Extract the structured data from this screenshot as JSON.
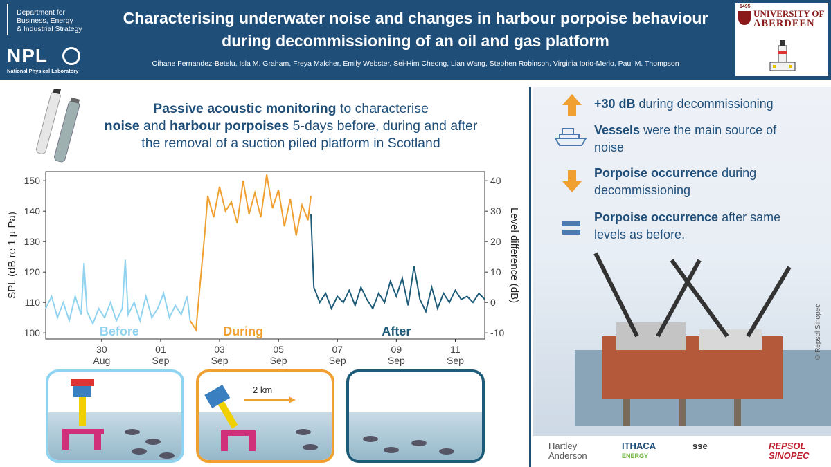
{
  "header": {
    "beis_lines": "Department for\nBusiness, Energy\n& Industrial Strategy",
    "npl_logo": "NPL",
    "npl_name": "National Physical Laboratory",
    "title": "Characterising underwater noise and changes in harbour porpoise behaviour during decommissioning of an oil and gas platform",
    "authors": "Oihane Fernandez-Betelu, Isla M. Graham, Freya Malcher, Emily Webster, Sei-Him Cheong, Lian Wang, Stephen Robinson, Virginia Iorio-Merlo, Paul M. Thompson",
    "uoa_year": "1495",
    "uoa_line1": "UNIVERSITY OF",
    "uoa_line2": "ABERDEEN"
  },
  "intro": {
    "bold1": "Passive acoustic monitoring",
    "text1": " to characterise",
    "bold2": "noise",
    "text2": " and ",
    "bold3": "harbour porpoises",
    "text3": " 5-days before, during and after",
    "text4": "the removal of a suction piled platform in Scotland"
  },
  "chart_data": {
    "type": "line",
    "ylabel": "SPL (dB re 1 µ Pa)",
    "y2label": "Level difference (dB)",
    "ylim": [
      98,
      153
    ],
    "y_ticks": [
      100,
      110,
      120,
      130,
      140,
      150
    ],
    "y2_ticks": [
      -10,
      0,
      10,
      20,
      30,
      40
    ],
    "x_ticks": [
      {
        "day": 0,
        "label": "30",
        "sub": "Aug"
      },
      {
        "day": 2,
        "label": "01",
        "sub": "Sep"
      },
      {
        "day": 4,
        "label": "03",
        "sub": "Sep"
      },
      {
        "day": 6,
        "label": "05",
        "sub": "Sep"
      },
      {
        "day": 8,
        "label": "07",
        "sub": "Sep"
      },
      {
        "day": 10,
        "label": "09",
        "sub": "Sep"
      },
      {
        "day": 12,
        "label": "11",
        "sub": "Sep"
      }
    ],
    "xlim": [
      -1.9,
      13.0
    ],
    "series": [
      {
        "name": "Before",
        "color": "#8fd3f0",
        "x": [
          -1.9,
          -1.7,
          -1.5,
          -1.3,
          -1.1,
          -0.9,
          -0.7,
          -0.6,
          -0.5,
          -0.3,
          -0.1,
          0.1,
          0.3,
          0.5,
          0.7,
          0.8,
          0.9,
          1.1,
          1.3,
          1.5,
          1.7,
          1.9,
          2.1,
          2.3,
          2.5,
          2.7,
          2.9,
          3.0
        ],
        "y": [
          108,
          112,
          105,
          110,
          104,
          112,
          106,
          123,
          107,
          103,
          108,
          105,
          110,
          104,
          108,
          124,
          106,
          110,
          104,
          112,
          105,
          108,
          113,
          105,
          109,
          106,
          112,
          104
        ]
      },
      {
        "name": "During",
        "color": "#f0a030",
        "x": [
          3.0,
          3.2,
          3.3,
          3.5,
          3.6,
          3.8,
          4.0,
          4.2,
          4.4,
          4.6,
          4.8,
          5.0,
          5.2,
          5.4,
          5.6,
          5.8,
          6.0,
          6.2,
          6.4,
          6.6,
          6.8,
          7.0,
          7.1
        ],
        "y": [
          104,
          101,
          112,
          133,
          145,
          138,
          148,
          140,
          143,
          136,
          150,
          139,
          146,
          138,
          152,
          141,
          147,
          135,
          144,
          132,
          142,
          137,
          145
        ]
      },
      {
        "name": "After",
        "color": "#1d5b78",
        "x": [
          7.1,
          7.2,
          7.4,
          7.6,
          7.8,
          8.0,
          8.2,
          8.4,
          8.6,
          8.8,
          9.0,
          9.2,
          9.4,
          9.6,
          9.8,
          10.0,
          10.2,
          10.4,
          10.6,
          10.8,
          11.0,
          11.2,
          11.4,
          11.6,
          11.8,
          12.0,
          12.2,
          12.4,
          12.6,
          12.8,
          13.0
        ],
        "y": [
          139,
          115,
          110,
          113,
          108,
          112,
          110,
          114,
          109,
          115,
          111,
          108,
          113,
          110,
          117,
          112,
          118,
          109,
          122,
          111,
          107,
          115,
          108,
          113,
          110,
          114,
          111,
          112,
          110,
          113,
          111
        ]
      }
    ],
    "annotations": [
      "Before",
      "During",
      "After"
    ]
  },
  "panels": {
    "during_distance": "2 km"
  },
  "facts": [
    {
      "bold": "+30 dB",
      "text": " during decommissioning"
    },
    {
      "bold": "Vessels",
      "text": " were the main source of noise"
    },
    {
      "bold": "Porpoise occurrence",
      "text": " during decommissioning"
    },
    {
      "bold": "Porpoise occurrence",
      "text": " after same levels as before."
    }
  ],
  "credit": "© Repsol Sinopec",
  "logos": {
    "hartley1": "Hartley",
    "hartley2": "Anderson",
    "ithaca1": "ITHACA",
    "ithaca2": "ENERGY",
    "sse": "sse",
    "repsol1": "REPSOL",
    "repsol2": "SINOPEC"
  },
  "colors": {
    "navy": "#1f4e79",
    "before": "#8fd3f0",
    "during": "#f0a030",
    "after": "#1d5b78",
    "arrow": "#f0a030",
    "equals": "#4a7ab0"
  }
}
